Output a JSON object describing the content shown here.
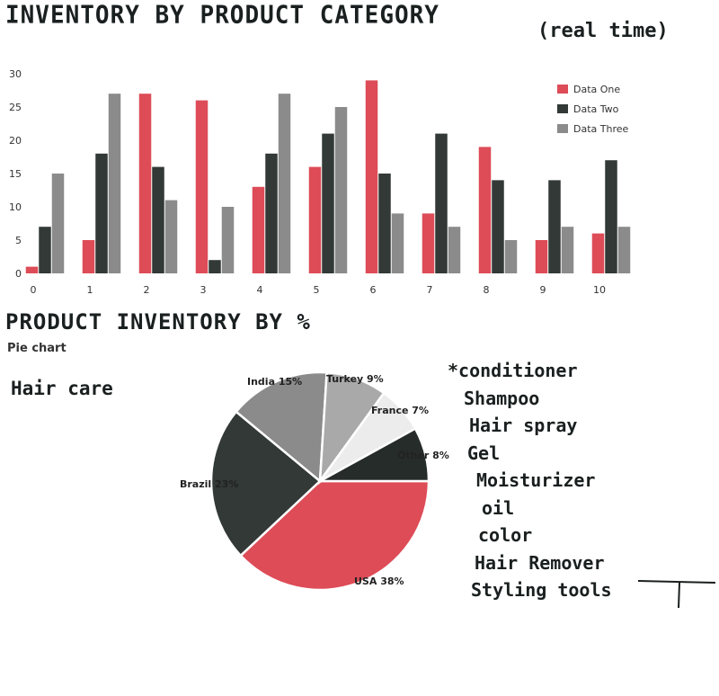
{
  "titles": {
    "bar_title": "INVENTORY BY PRODUCT CATEGORY",
    "bar_note": "(real time)",
    "pie_title": "PRODUCT INVENTORY BY %",
    "pie_subtitle": "Pie chart",
    "category": "Hair care"
  },
  "products": [
    "*conditioner",
    "Shampoo",
    "Hair spray",
    "Gel",
    "Moisturizer",
    "oil",
    "color",
    "Hair Remover",
    "Styling tools"
  ],
  "colors": {
    "data_one": "#dd4c57",
    "data_two": "#323936",
    "data_three": "#8b8b8b",
    "usa": "#dd4c57",
    "brazil": "#323936",
    "india": "#8b8b8b",
    "turkey": "#a9a9a9",
    "france": "#ececec",
    "other": "#262c29"
  },
  "chart_data": [
    {
      "type": "bar",
      "title": "INVENTORY BY PRODUCT CATEGORY",
      "categories": [
        "0",
        "1",
        "2",
        "3",
        "4",
        "5",
        "6",
        "7",
        "8",
        "9",
        "10"
      ],
      "series": [
        {
          "name": "Data One",
          "values": [
            1,
            5,
            27,
            26,
            13,
            16,
            29,
            9,
            19,
            5,
            6
          ]
        },
        {
          "name": "Data Two",
          "values": [
            7,
            18,
            16,
            2,
            18,
            21,
            15,
            21,
            14,
            14,
            17
          ]
        },
        {
          "name": "Data Three",
          "values": [
            15,
            27,
            11,
            10,
            27,
            25,
            9,
            7,
            5,
            7,
            7
          ]
        }
      ],
      "yticks": [
        "0",
        "5",
        "10",
        "15",
        "20",
        "25",
        "30"
      ],
      "ylim": [
        0,
        30
      ],
      "legend": "top-right",
      "grid": false
    },
    {
      "type": "pie",
      "title": "PRODUCT INVENTORY BY %",
      "subtitle": "Pie chart",
      "slices": [
        {
          "label": "USA",
          "value": 38,
          "text": "USA 38%"
        },
        {
          "label": "Brazil",
          "value": 23,
          "text": "Brazil 23%"
        },
        {
          "label": "India",
          "value": 15,
          "text": "India 15%"
        },
        {
          "label": "Turkey",
          "value": 9,
          "text": "Turkey 9%"
        },
        {
          "label": "France",
          "value": 7,
          "text": "France 7%"
        },
        {
          "label": "Other",
          "value": 8,
          "text": "Other 8%"
        }
      ]
    }
  ]
}
